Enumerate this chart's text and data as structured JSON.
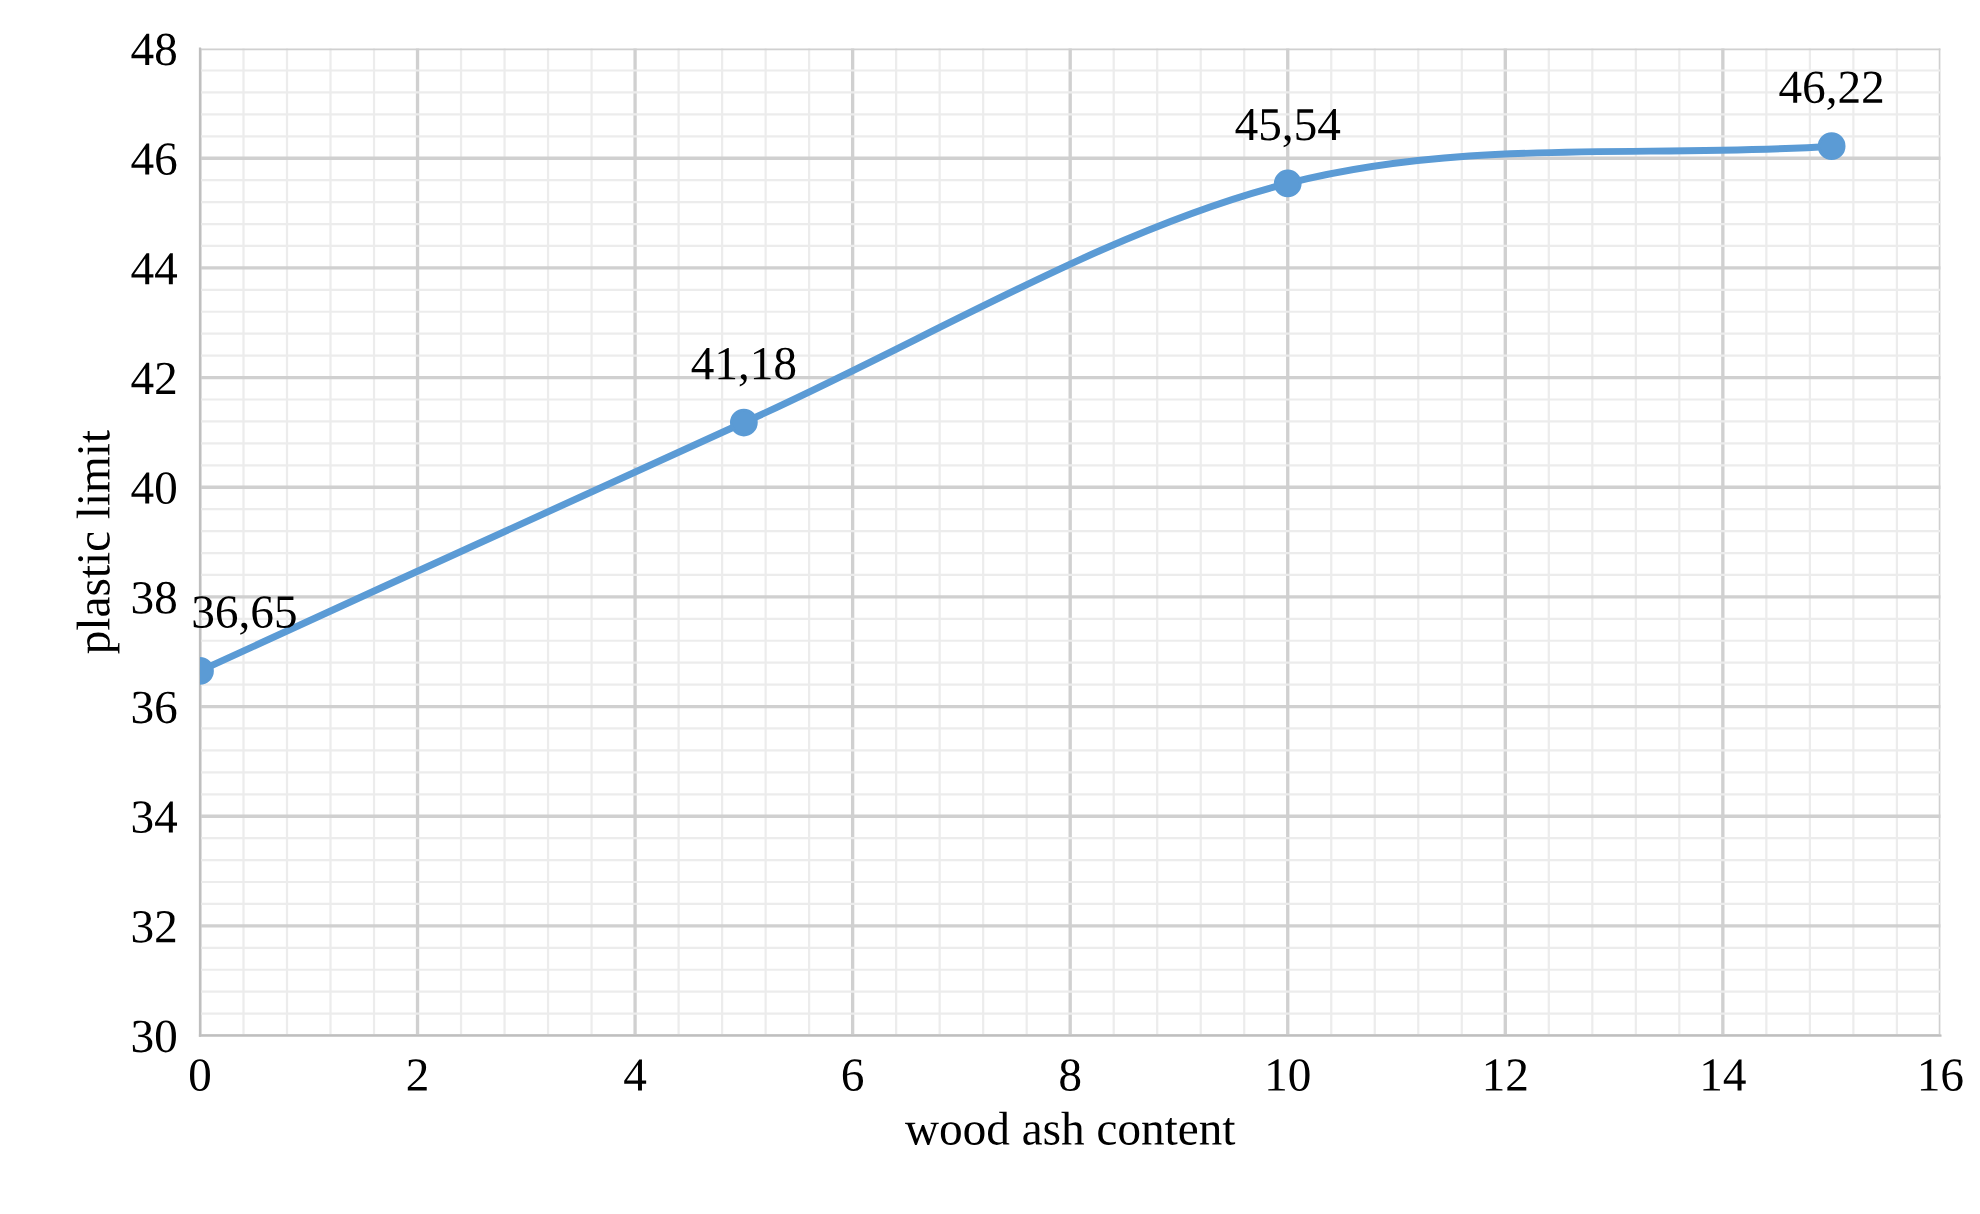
{
  "chart_data": {
    "type": "line",
    "xlabel": "wood ash content",
    "ylabel": "plastic limit",
    "x": [
      0,
      5,
      10,
      15
    ],
    "series": [
      {
        "color": "#5b9bd5",
        "values": [
          36.65,
          41.18,
          45.54,
          46.22
        ],
        "value_labels": [
          "36,65",
          "41,18",
          "45,54",
          "46,22"
        ]
      }
    ],
    "xlim": [
      0,
      16
    ],
    "xticks": [
      0,
      2,
      4,
      6,
      8,
      10,
      12,
      14,
      16
    ],
    "ylim": [
      30,
      48
    ],
    "yticks": [
      30,
      32,
      34,
      36,
      38,
      40,
      42,
      44,
      46,
      48
    ],
    "grid": true,
    "marker": "circle",
    "line_style": "solid",
    "legend": false
  }
}
